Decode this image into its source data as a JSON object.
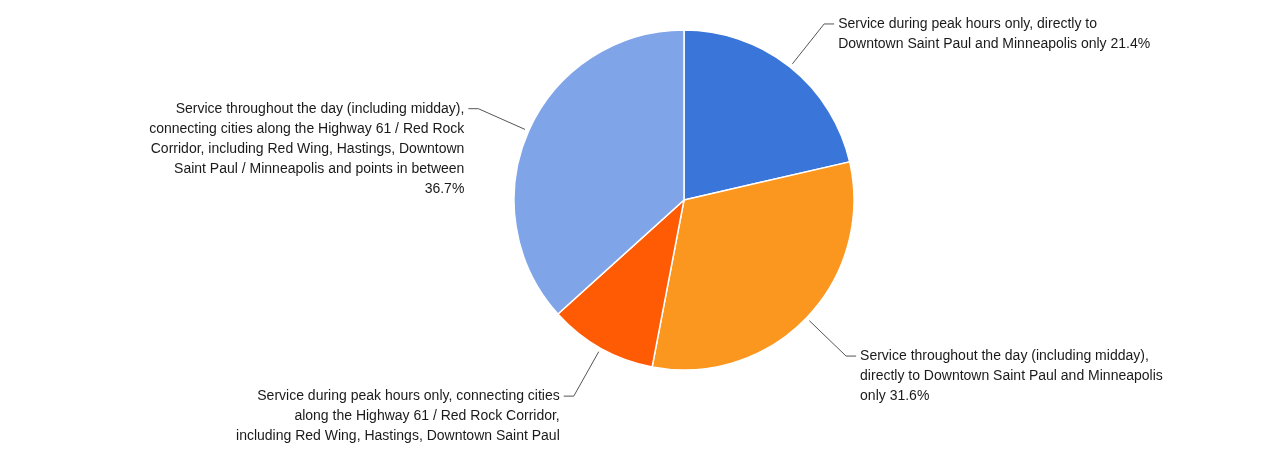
{
  "chart_data": {
    "type": "pie",
    "categories": [
      "Service during peak hours only, directly to Downtown Saint Paul and Minneapolis only",
      "Service throughout the day (including midday), directly to Downtown Saint Paul and Minneapolis only",
      "Service during peak hours only, connecting cities along the Highway 61 / Red Rock Corridor, including Red Wing, Hastings, Downtown Saint Paul",
      "Service throughout the day (including midday), connecting cities along the Highway 61 / Red Rock Corridor, including Red Wing, Hastings, Downtown Saint Paul / Minneapolis and points in between"
    ],
    "values": [
      21.4,
      31.6,
      10.3,
      36.7
    ],
    "colors": [
      "#3a75d9",
      "#fb971f",
      "#ff5a04",
      "#7fa5e8"
    ],
    "value_labels": [
      "21.4%",
      "31.6%",
      null,
      "36.7%"
    ]
  }
}
